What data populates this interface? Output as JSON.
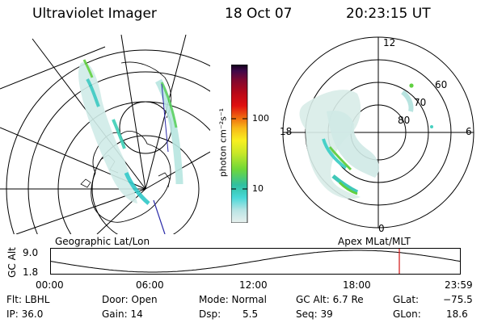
{
  "header": {
    "instrument": "Ultraviolet Imager",
    "date": "18 Oct 07",
    "time": "20:23:15 UT"
  },
  "left_panel": {
    "label": "Geographic Lat/Lon",
    "colors": {
      "grid": "#000000",
      "track": "#2a2aa8"
    }
  },
  "colorbar": {
    "unit_label": "photon cm⁻²s⁻¹",
    "tick_labels": [
      "100",
      "10"
    ],
    "colors": [
      "#e8f0ee",
      "#b8e4e4",
      "#48d8d8",
      "#30c0a0",
      "#70d838",
      "#c8e828",
      "#f8f020",
      "#f8b818",
      "#f07010",
      "#e01010",
      "#b80818",
      "#800830",
      "#40084a",
      "#100018"
    ]
  },
  "right_panel": {
    "label": "Apex  MLat/MLT",
    "mlt_labels": {
      "top": "12",
      "bottom": "0",
      "left": "18",
      "right": "6"
    },
    "lat_labels": [
      "60",
      "70",
      "80"
    ]
  },
  "timeline": {
    "axis_title": "GC Alt",
    "y_ticks": [
      "9.0",
      "1.8"
    ],
    "x_ticks": [
      "00:00",
      "06:00",
      "12:00",
      "18:00",
      "23:59"
    ],
    "current_marker_color": "#d01010"
  },
  "info": {
    "filter": "Flt: LBHL",
    "ip": "IP: 36.0",
    "door": "Door: Open",
    "gain": "Gain: 14",
    "mode": "Mode: Normal",
    "dsp_label": "Dsp:",
    "dsp_value": "5.5",
    "gc_alt": "GC Alt: 6.7 Re",
    "seq": "Seq: 39",
    "glat_label": "GLat:",
    "glat_value": "−75.5",
    "glon_label": "GLon:",
    "glon_value": "18.6"
  }
}
